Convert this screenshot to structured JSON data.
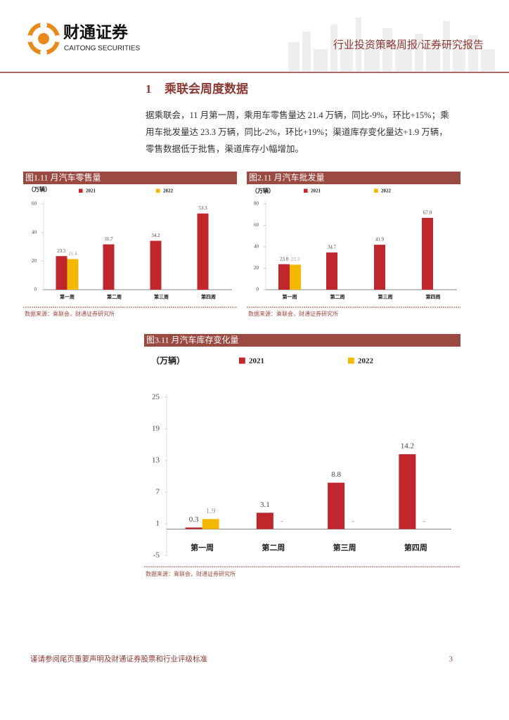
{
  "header": {
    "brand_cn": "财通证券",
    "brand_en": "CAITONG SECURITIES",
    "report_type": "行业投资策略周报/证券研究报告"
  },
  "section": {
    "number": "1",
    "heading": "乘联会周度数据",
    "paragraph": [
      "据乘联会，11 月第一周，乘用车零售量达 21.4 万辆，同比-9%，环比+15%；乘",
      "用车批发量达 23.3 万辆，同比-2%，环比+19%；渠道库存变化量达+1.9 万辆，",
      "零售数据低于批售，渠道库存小幅增加。"
    ]
  },
  "chart_data": [
    {
      "type": "bar",
      "title": "图1.11 月汽车零售量",
      "y_label": "（万辆）",
      "categories": [
        "第一周",
        "第二周",
        "第三周",
        "第四周"
      ],
      "series": [
        {
          "name": "2021",
          "color": "#c0272d",
          "values": [
            23.5,
            31.7,
            34.2,
            53.3
          ]
        },
        {
          "name": "2022",
          "color": "#f5b800",
          "values": [
            21.4,
            null,
            null,
            null
          ]
        }
      ],
      "ylim": [
        0,
        60
      ],
      "yticks": [
        0,
        20,
        40,
        60
      ],
      "source": "数据来源：乘联会，财通证券研究所"
    },
    {
      "type": "bar",
      "title": "图2.11 月汽车批发量",
      "y_label": "（万辆）",
      "categories": [
        "第一周",
        "第二周",
        "第三周",
        "第四周"
      ],
      "series": [
        {
          "name": "2021",
          "color": "#c0272d",
          "values": [
            23.8,
            34.7,
            41.9,
            67
          ],
          "value_labels": [
            "23.8",
            "34.7",
            "41.9",
            "67.0"
          ]
        },
        {
          "name": "2022",
          "color": "#f5b800",
          "values": [
            23.3,
            null,
            null,
            null
          ]
        }
      ],
      "ylim": [
        0,
        80
      ],
      "yticks": [
        0,
        20,
        40,
        60,
        80
      ],
      "source": "数据来源：乘联会，财通证券研究所"
    },
    {
      "type": "bar",
      "title": "图3.11 月汽车库存变化量",
      "y_label": "（万辆）",
      "categories": [
        "第一周",
        "第二周",
        "第三周",
        "第四周"
      ],
      "series": [
        {
          "name": "2021",
          "color": "#c0272d",
          "values": [
            0.3,
            3.1,
            8.8,
            14.2
          ]
        },
        {
          "name": "2022",
          "color": "#f5b800",
          "values": [
            1.9,
            null,
            null,
            null
          ],
          "value_labels": [
            "1.9",
            "-",
            "-",
            "-"
          ]
        }
      ],
      "ylim": [
        -5,
        25
      ],
      "yticks": [
        -5,
        1,
        7,
        13,
        19,
        25
      ],
      "source": "数据来源：乘联会，财通证券研究所"
    }
  ],
  "footer": {
    "disclaimer": "谨请参阅尾页重要声明及财通证券股票和行业评级标准",
    "page": "3"
  }
}
